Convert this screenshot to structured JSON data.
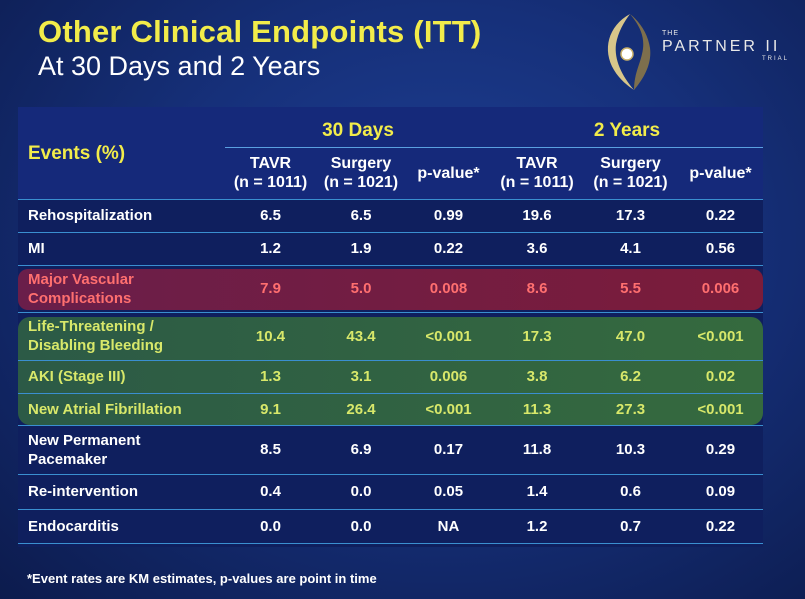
{
  "title": "Other Clinical Endpoints (ITT)",
  "subtitle": "At 30 Days and 2 Years",
  "logo": {
    "the": "THE",
    "name": "PARTNER II",
    "trial": "TRIAL"
  },
  "table": {
    "corner": "Events (%)",
    "groups": [
      "30 Days",
      "2 Years"
    ],
    "columns": [
      "TAVR\n(n = 1011)",
      "Surgery\n(n = 1021)",
      "p-value*",
      "TAVR\n(n = 1011)",
      "Surgery\n(n = 1021)",
      "p-value*"
    ],
    "rows": [
      {
        "label": "Rehospitalization",
        "values": [
          "6.5",
          "6.5",
          "0.99",
          "19.6",
          "17.3",
          "0.22"
        ],
        "style": ""
      },
      {
        "label": "MI",
        "values": [
          "1.2",
          "1.9",
          "0.22",
          "3.6",
          "4.1",
          "0.56"
        ],
        "style": ""
      },
      {
        "label": "Major Vascular\nComplications",
        "values": [
          "7.9",
          "5.0",
          "0.008",
          "8.6",
          "5.5",
          "0.006"
        ],
        "style": "red"
      },
      {
        "label": "Life-Threatening /\nDisabling Bleeding",
        "values": [
          "10.4",
          "43.4",
          "<0.001",
          "17.3",
          "47.0",
          "<0.001"
        ],
        "style": "green"
      },
      {
        "label": "AKI (Stage III)",
        "values": [
          "1.3",
          "3.1",
          "0.006",
          "3.8",
          "6.2",
          "0.02"
        ],
        "style": "green"
      },
      {
        "label": "New Atrial Fibrillation",
        "values": [
          "9.1",
          "26.4",
          "<0.001",
          "11.3",
          "27.3",
          "<0.001"
        ],
        "style": "green"
      },
      {
        "label": "New Permanent\nPacemaker",
        "values": [
          "8.5",
          "6.9",
          "0.17",
          "11.8",
          "10.3",
          "0.29"
        ],
        "style": ""
      },
      {
        "label": "Re-intervention",
        "values": [
          "0.4",
          "0.0",
          "0.05",
          "1.4",
          "0.6",
          "0.09"
        ],
        "style": ""
      },
      {
        "label": "Endocarditis",
        "values": [
          "0.0",
          "0.0",
          "NA",
          "1.2",
          "0.7",
          "0.22"
        ],
        "style": ""
      }
    ]
  },
  "footnote": "*Event rates are KM estimates, p-values are point in time",
  "colors": {
    "title": "#f2ec4a",
    "highlight_red": "#7b1c3a",
    "highlight_green": "#356a3e",
    "red_text": "#ff6f6f",
    "green_text": "#d8e86a"
  }
}
